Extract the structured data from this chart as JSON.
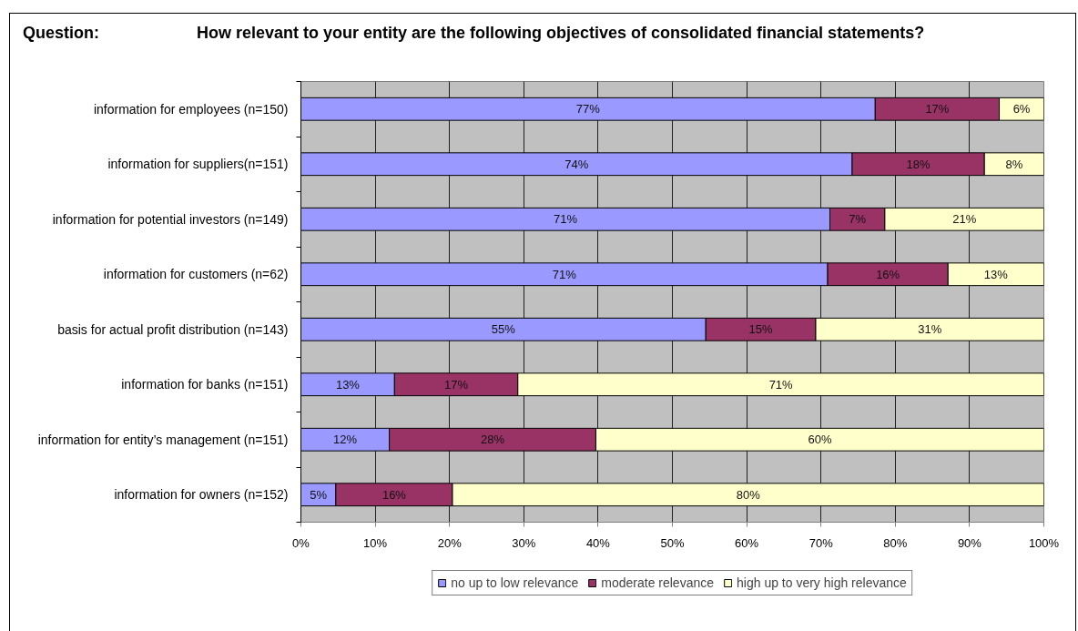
{
  "chart_data": {
    "type": "bar",
    "orientation": "horizontal",
    "stacked": true,
    "title": "Question:",
    "subtitle": "How relevant to your entity are the following objectives of consolidated financial statements?",
    "categories": [
      "information for employees (n=150)",
      "information for suppliers(n=151)",
      "information for potential investors (n=149)",
      "information for customers (n=62)",
      "basis for actual profit distribution (n=143)",
      "information for banks (n=151)",
      "information for entity’s management (n=151)",
      "information for owners (n=152)"
    ],
    "series": [
      {
        "name": "no up to low relevance",
        "color": "#9999ff",
        "values": [
          77.3,
          74.2,
          71.2,
          70.9,
          54.5,
          12.6,
          11.9,
          4.7
        ],
        "value_labels": [
          "77%",
          "74%",
          "71%",
          "71%",
          "55%",
          "13%",
          "12%",
          "5%"
        ]
      },
      {
        "name": "moderate relevance",
        "color": "#993366",
        "values": [
          16.7,
          17.8,
          7.4,
          16.2,
          14.8,
          16.6,
          27.8,
          15.7
        ],
        "value_labels": [
          "17%",
          "18%",
          "7%",
          "16%",
          "15%",
          "17%",
          "28%",
          "16%"
        ]
      },
      {
        "name": "high up to very high relevance",
        "color": "#ffffcc",
        "values": [
          6.0,
          8.0,
          21.4,
          12.9,
          30.7,
          70.8,
          60.3,
          79.6
        ],
        "value_labels": [
          "6%",
          "8%",
          "21%",
          "13%",
          "31%",
          "71%",
          "60%",
          "80%"
        ]
      }
    ],
    "xlim": [
      0,
      100
    ],
    "xticks": [
      {
        "value": 0,
        "label": "0%"
      },
      {
        "value": 10,
        "label": "10%"
      },
      {
        "value": 20,
        "label": "20%"
      },
      {
        "value": 30,
        "label": "30%"
      },
      {
        "value": 40,
        "label": "40%"
      },
      {
        "value": 50,
        "label": "50%"
      },
      {
        "value": 60,
        "label": "60%"
      },
      {
        "value": 70,
        "label": "70%"
      },
      {
        "value": 80,
        "label": "80%"
      },
      {
        "value": 90,
        "label": "90%"
      },
      {
        "value": 100,
        "label": "100%"
      }
    ],
    "grid": "x",
    "legend": "bottom"
  }
}
